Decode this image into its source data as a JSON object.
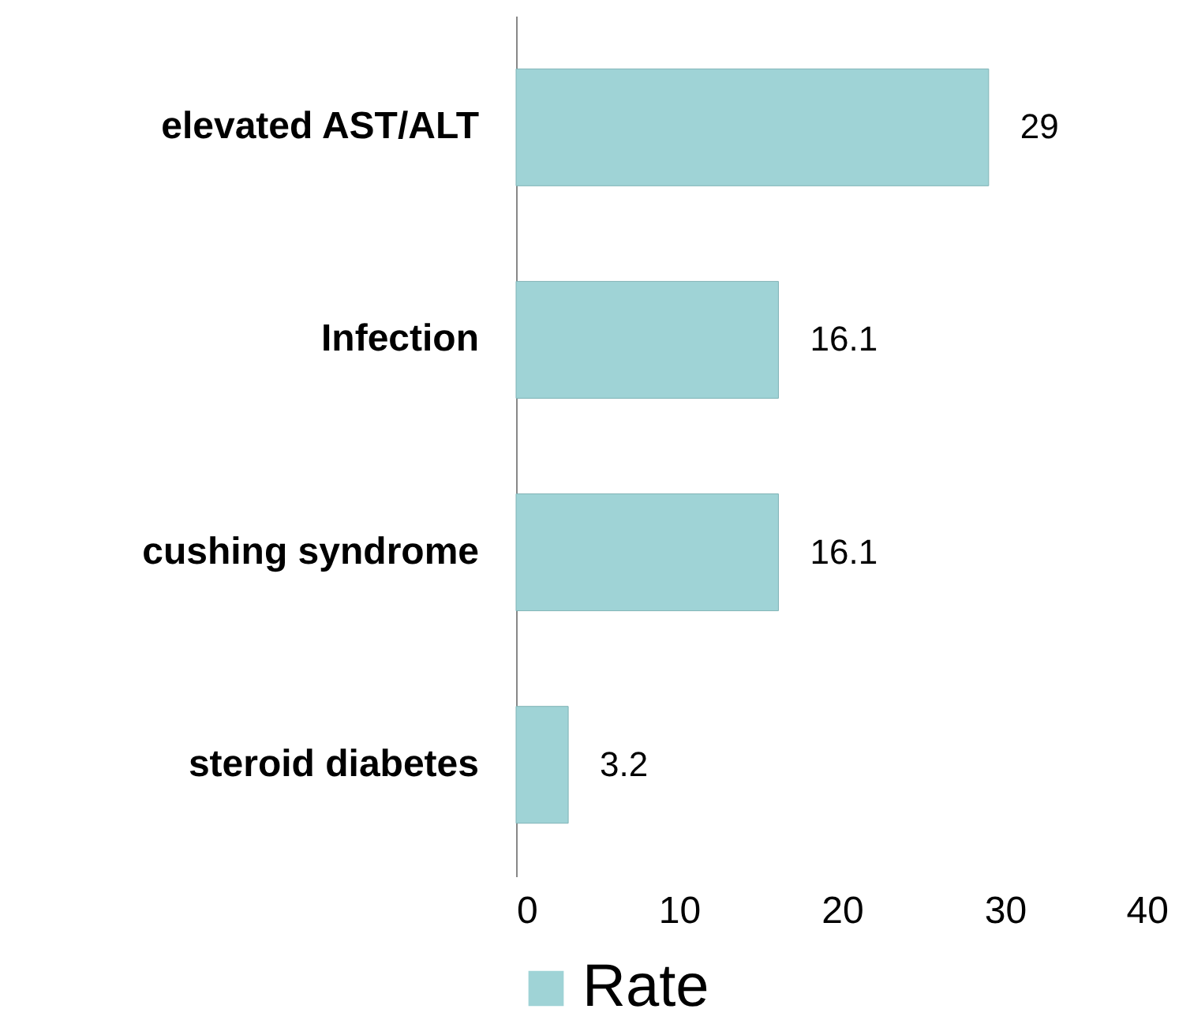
{
  "chart_data": {
    "type": "bar",
    "orientation": "horizontal",
    "categories": [
      "elevated AST/ALT",
      "Infection",
      "cushing syndrome",
      "steroid diabetes"
    ],
    "series": [
      {
        "name": "Rate",
        "color": "#9fd3d6",
        "values": [
          29,
          16.1,
          16.1,
          3.2
        ]
      }
    ],
    "xlim": [
      0,
      40
    ],
    "xticks": [
      0,
      10,
      20,
      30,
      40
    ],
    "grid": false,
    "legend": "bottom",
    "data_labels": true
  }
}
